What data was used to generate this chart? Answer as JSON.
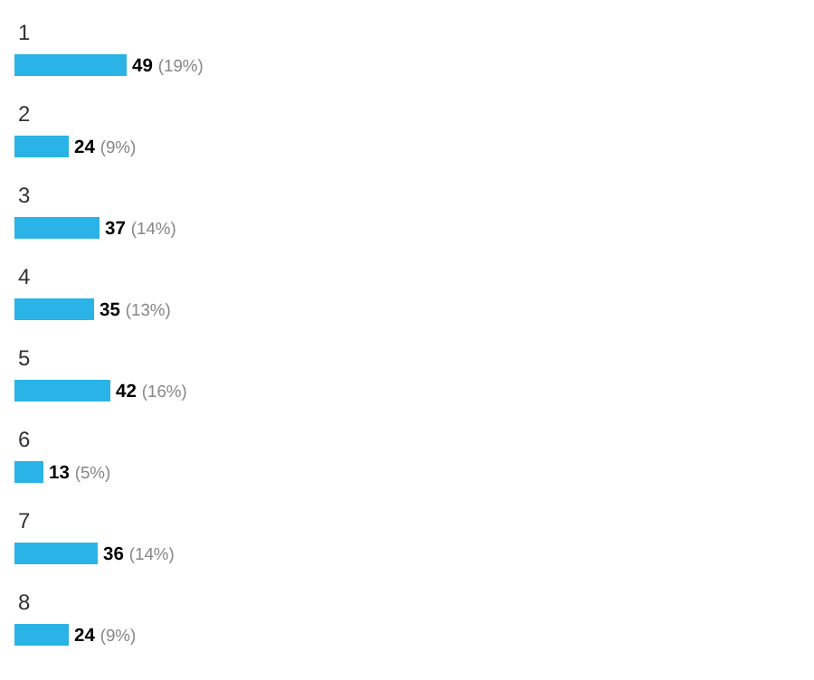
{
  "chart_data": {
    "type": "bar",
    "orientation": "horizontal",
    "categories": [
      "1",
      "2",
      "3",
      "4",
      "5",
      "6",
      "7",
      "8"
    ],
    "values": [
      49,
      24,
      37,
      35,
      42,
      13,
      36,
      24
    ],
    "value_labels": [
      "49 (19%)",
      "24 (9%)",
      "37 (14%)",
      "35 (13%)",
      "42 (16%)",
      "13 (5%)",
      "36 (14%)",
      "24 (9%)"
    ],
    "color": "#29b3e6",
    "grid": false,
    "legend": false
  }
}
